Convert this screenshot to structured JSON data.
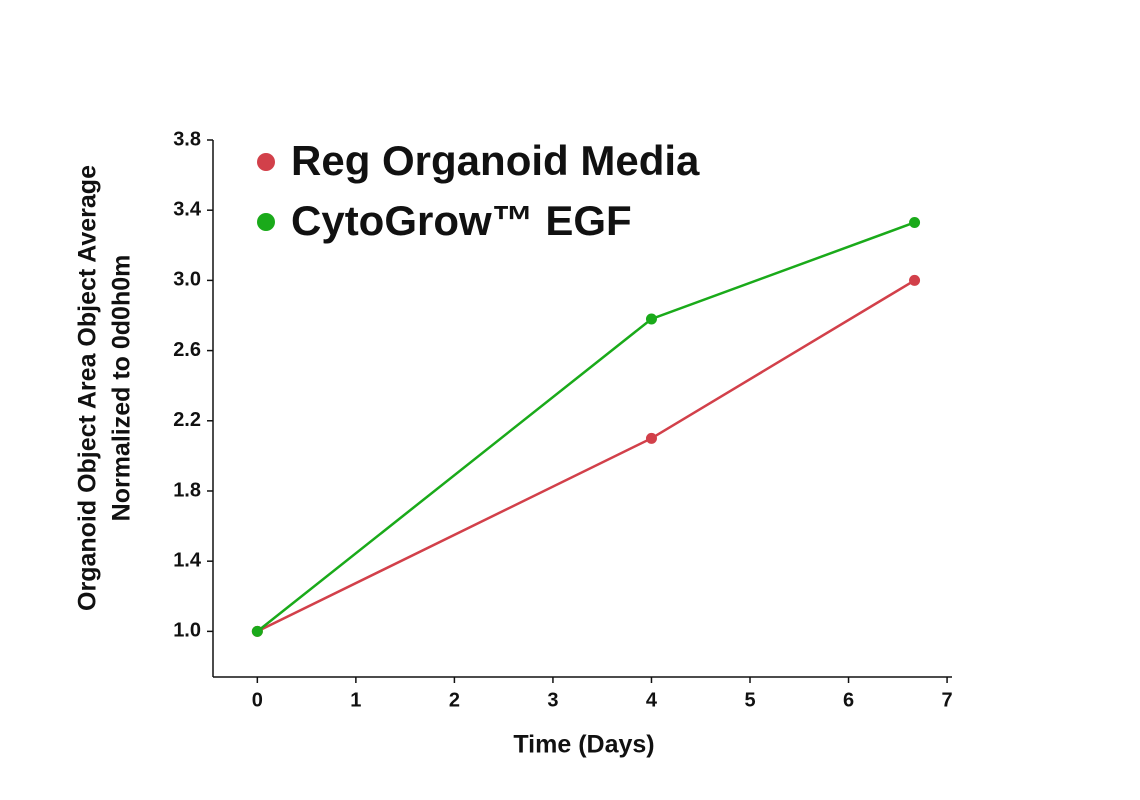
{
  "chart_data": {
    "type": "line",
    "xlabel": "Time (Days)",
    "ylabel": [
      "Organoid Object Area Object Average",
      "Normalized to 0d0h0m"
    ],
    "x": [
      0,
      4,
      6.67
    ],
    "series": [
      {
        "name": "Reg Organoid Media",
        "color": "#d2404a",
        "values": [
          1.0,
          2.1,
          3.0
        ]
      },
      {
        "name": "CytoGrow™ EGF",
        "color": "#1aaa1a",
        "values": [
          1.0,
          2.78,
          3.33
        ]
      }
    ],
    "xlim": [
      -0.45,
      7.05
    ],
    "xticks": [
      0,
      1,
      2,
      3,
      4,
      5,
      6,
      7
    ],
    "ylim": [
      0.74,
      3.8
    ],
    "yticks": [
      {
        "value": 1,
        "label": "1.0"
      },
      1.4,
      1.8,
      2.2,
      2.6,
      {
        "value": 3,
        "label": "3.0"
      },
      3.4,
      3.8
    ],
    "grid": false,
    "legend": "upper-left"
  }
}
